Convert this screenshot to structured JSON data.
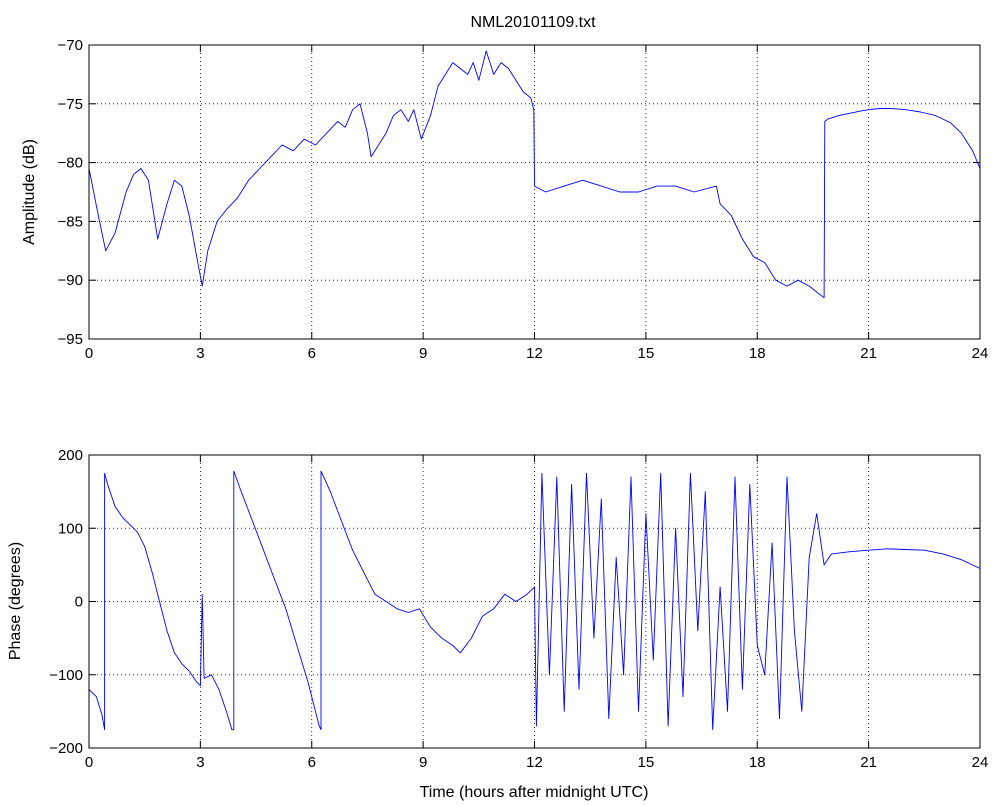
{
  "colors": {
    "line": "#0000ff",
    "axis": "#000000",
    "background": "#ffffff"
  },
  "chart_data": [
    {
      "type": "line",
      "title": "NML20101109.txt",
      "xlabel": "",
      "ylabel": "Amplitude (dB)",
      "xlim": [
        0,
        24
      ],
      "ylim": [
        -95,
        -70
      ],
      "xticks": [
        0,
        3,
        6,
        9,
        12,
        15,
        18,
        21,
        24
      ],
      "yticks": [
        -95,
        -90,
        -85,
        -80,
        -75,
        -70
      ],
      "grid": true,
      "series": [
        {
          "x": [
            0,
            0.25,
            0.45,
            0.7,
            1.0,
            1.2,
            1.4,
            1.6,
            1.85,
            2.1,
            2.3,
            2.5,
            2.7,
            2.9,
            3.05,
            3.2,
            3.45,
            3.7,
            4.0,
            4.3,
            4.6,
            4.9,
            5.2,
            5.5,
            5.8,
            6.1,
            6.4,
            6.7,
            6.9,
            7.1,
            7.3,
            7.5,
            7.6,
            7.8,
            8.0,
            8.2,
            8.4,
            8.6,
            8.75,
            8.95,
            9.2,
            9.4,
            9.6,
            9.8,
            10.0,
            10.2,
            10.35,
            10.5,
            10.7,
            10.9,
            11.1,
            11.3,
            11.5,
            11.7,
            11.9,
            11.98,
            12.0,
            12.3,
            12.8,
            13.3,
            13.8,
            14.3,
            14.8,
            15.3,
            15.8,
            16.3,
            16.9,
            17.0,
            17.3,
            17.6,
            17.9,
            18.2,
            18.5,
            18.8,
            19.1,
            19.4,
            19.6,
            19.8,
            19.82,
            19.9,
            20.2,
            20.5,
            20.8,
            21.0,
            21.3,
            21.6,
            22.0,
            22.4,
            22.8,
            23.2,
            23.5,
            23.8,
            24.0
          ],
          "y": [
            -80.5,
            -84.5,
            -87.5,
            -86.0,
            -82.5,
            -81.0,
            -80.5,
            -81.5,
            -86.5,
            -83.5,
            -81.5,
            -82.0,
            -84.5,
            -88.0,
            -90.5,
            -87.5,
            -85.0,
            -84.0,
            -83.0,
            -81.5,
            -80.5,
            -79.5,
            -78.5,
            -79.0,
            -78.0,
            -78.5,
            -77.5,
            -76.5,
            -77.0,
            -75.5,
            -75.0,
            -77.5,
            -79.5,
            -78.5,
            -77.5,
            -76.0,
            -75.5,
            -76.5,
            -75.5,
            -78.0,
            -76.0,
            -73.5,
            -72.5,
            -71.5,
            -72.0,
            -72.5,
            -71.5,
            -73.0,
            -70.5,
            -72.5,
            -71.5,
            -72.0,
            -73.0,
            -74.0,
            -74.5,
            -75.5,
            -82.0,
            -82.5,
            -82.0,
            -81.5,
            -82.0,
            -82.5,
            -82.5,
            -82.0,
            -82.0,
            -82.5,
            -82.0,
            -83.5,
            -84.5,
            -86.5,
            -88.0,
            -88.5,
            -90.0,
            -90.5,
            -90.0,
            -90.5,
            -91.0,
            -91.5,
            -76.5,
            -76.3,
            -76.0,
            -75.8,
            -75.6,
            -75.5,
            -75.4,
            -75.4,
            -75.5,
            -75.7,
            -76.0,
            -76.6,
            -77.5,
            -79.0,
            -80.5
          ]
        }
      ]
    },
    {
      "type": "line",
      "title": "",
      "xlabel": "Time (hours after midnight UTC)",
      "ylabel": "Phase (degrees)",
      "xlim": [
        0,
        24
      ],
      "ylim": [
        -200,
        200
      ],
      "xticks": [
        0,
        3,
        6,
        9,
        12,
        15,
        18,
        21,
        24
      ],
      "yticks": [
        -200,
        -100,
        0,
        100,
        200
      ],
      "grid": true,
      "series": [
        {
          "x": [
            0,
            0.2,
            0.35,
            0.42,
            0.42,
            0.5,
            0.7,
            0.9,
            1.1,
            1.3,
            1.5,
            1.7,
            1.9,
            2.1,
            2.3,
            2.5,
            2.7,
            2.9,
            3.0,
            3.05,
            3.1,
            3.3,
            3.5,
            3.7,
            3.85,
            3.9,
            3.9,
            4.1,
            4.4,
            4.7,
            5.0,
            5.3,
            5.6,
            5.9,
            6.2,
            6.25,
            6.25,
            6.5,
            6.8,
            7.1,
            7.4,
            7.7,
            8.0,
            8.3,
            8.6,
            8.9,
            9.2,
            9.5,
            9.8,
            10.0,
            10.3,
            10.6,
            10.9,
            11.2,
            11.5,
            11.8,
            12.0,
            12.05,
            12.2,
            12.4,
            12.6,
            12.8,
            13.0,
            13.2,
            13.4,
            13.6,
            13.8,
            14.0,
            14.2,
            14.4,
            14.6,
            14.8,
            15.0,
            15.2,
            15.4,
            15.6,
            15.8,
            16.0,
            16.2,
            16.4,
            16.6,
            16.8,
            17.0,
            17.2,
            17.4,
            17.6,
            17.8,
            18.0,
            18.2,
            18.4,
            18.6,
            18.8,
            19.0,
            19.2,
            19.4,
            19.6,
            19.8,
            20.0,
            20.5,
            21.0,
            21.5,
            22.0,
            22.5,
            23.0,
            23.5,
            24.0
          ],
          "y": [
            -120,
            -130,
            -155,
            -175,
            175,
            160,
            130,
            115,
            105,
            95,
            75,
            40,
            0,
            -40,
            -70,
            -85,
            -95,
            -110,
            -115,
            10,
            -105,
            -100,
            -120,
            -150,
            -175,
            -175,
            178,
            150,
            110,
            70,
            30,
            -10,
            -60,
            -110,
            -170,
            -175,
            178,
            150,
            110,
            70,
            40,
            10,
            0,
            -10,
            -15,
            -10,
            -35,
            -50,
            -60,
            -70,
            -50,
            -20,
            -10,
            10,
            0,
            10,
            20,
            -170,
            175,
            -100,
            170,
            -150,
            160,
            -120,
            175,
            -50,
            140,
            -160,
            60,
            -100,
            170,
            -150,
            120,
            -80,
            175,
            -170,
            100,
            -130,
            175,
            -40,
            150,
            -175,
            20,
            -150,
            170,
            -120,
            160,
            -60,
            -100,
            80,
            -160,
            170,
            -40,
            -150,
            60,
            120,
            50,
            65,
            68,
            70,
            72,
            71,
            70,
            65,
            57,
            45
          ]
        }
      ]
    }
  ]
}
